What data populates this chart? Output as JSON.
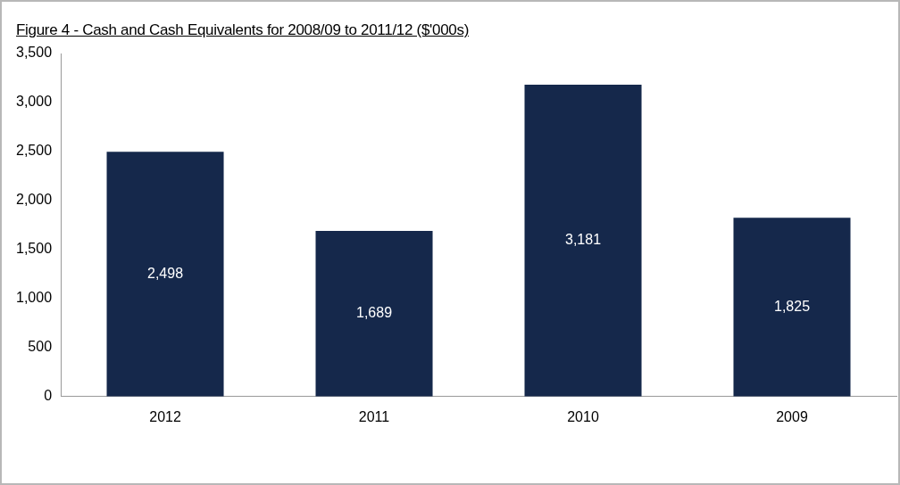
{
  "chart_data": {
    "type": "bar",
    "title": "Figure 4 - Cash and Cash Equivalents for 2008/09 to 2011/12 ($'000s)",
    "categories": [
      "2012",
      "2011",
      "2010",
      "2009"
    ],
    "values": [
      2498,
      1689,
      3181,
      1825
    ],
    "value_labels": [
      "2,498",
      "1,689",
      "3,181",
      "1,825"
    ],
    "color": "#15284b",
    "ylim": [
      0,
      3500
    ],
    "yticks": [
      {
        "value": 0,
        "label": "0"
      },
      {
        "value": 500,
        "label": "500"
      },
      {
        "value": 1000,
        "label": "1,000"
      },
      {
        "value": 1500,
        "label": "1,500"
      },
      {
        "value": 2000,
        "label": "2,000"
      },
      {
        "value": 2500,
        "label": "2,500"
      },
      {
        "value": 3000,
        "label": "3,000"
      },
      {
        "value": 3500,
        "label": "3,500"
      }
    ],
    "grid": false,
    "legend": false
  }
}
